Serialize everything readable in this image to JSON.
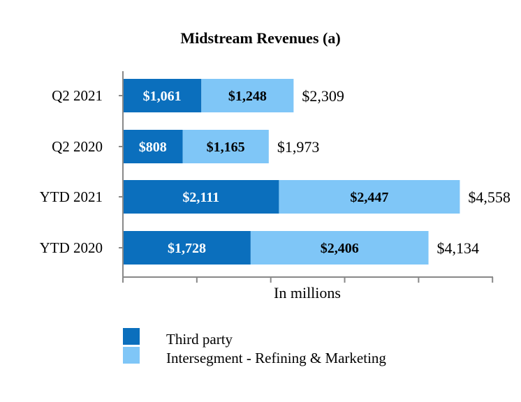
{
  "colors": {
    "third_party": "#0b6fbd",
    "intersegment": "#7fc6f7",
    "axis": "#888888"
  },
  "chart_data": {
    "type": "bar",
    "orientation": "horizontal",
    "stacked": true,
    "title": "Midstream Revenues (a)",
    "xlabel": "In millions",
    "ylabel": "",
    "categories": [
      "Q2 2021",
      "Q2 2020",
      "YTD 2021",
      "YTD 2020"
    ],
    "series": [
      {
        "name": "Third party",
        "values": [
          1061,
          808,
          2111,
          1728
        ],
        "labels": [
          "$1,061",
          "$808",
          "$2,111",
          "$1,728"
        ]
      },
      {
        "name": "Intersegment - Refining & Marketing",
        "values": [
          1248,
          1165,
          2447,
          2406
        ],
        "labels": [
          "$1,248",
          "$1,165",
          "$2,447",
          "$2,406"
        ]
      }
    ],
    "totals": [
      "$2,309",
      "$1,973",
      "$4,558",
      "$4,134"
    ],
    "xlim": [
      0,
      5000
    ],
    "grid": false,
    "legend_position": "bottom-left"
  }
}
